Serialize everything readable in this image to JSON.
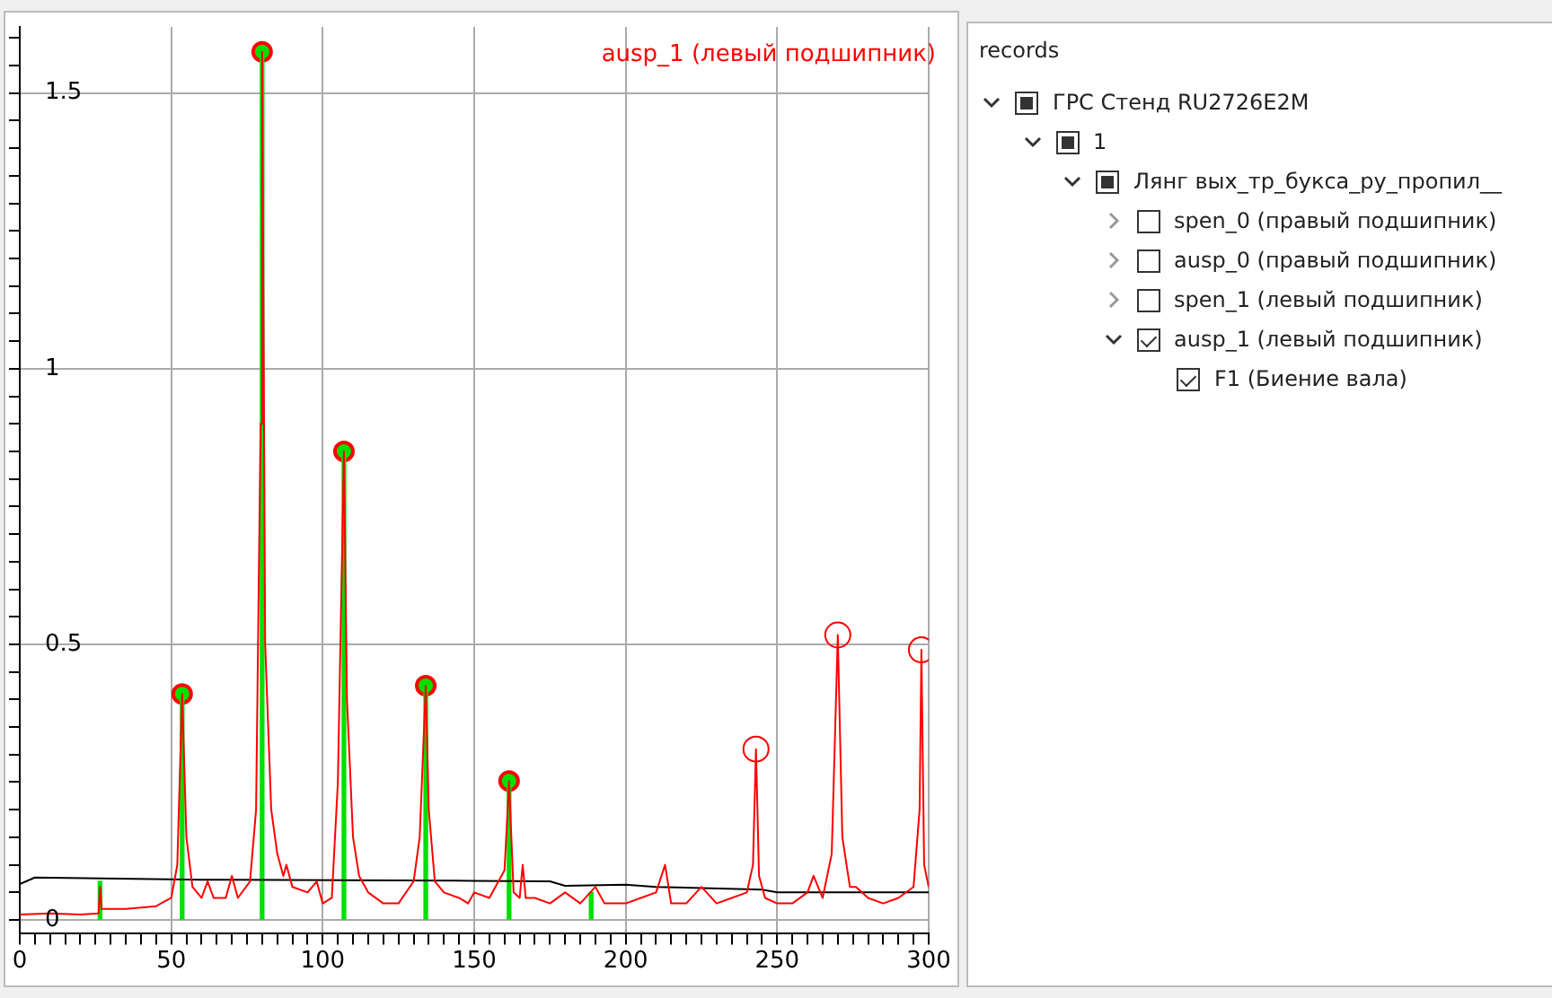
{
  "chart_data": [
    {
      "type": "line",
      "xlim": [
        0,
        300
      ],
      "ylim": [
        -0.025,
        1.62
      ],
      "xticks": [
        0,
        {
          "value": 5,
          "label": null
        },
        {
          "value": 10,
          "label": null
        },
        {
          "value": 15,
          "label": null
        },
        {
          "value": 20,
          "label": null
        },
        {
          "value": 25,
          "label": null
        },
        {
          "value": 30,
          "label": null
        },
        {
          "value": 35,
          "label": null
        },
        {
          "value": 40,
          "label": null
        },
        {
          "value": 45,
          "label": null
        },
        50,
        {
          "value": 55,
          "label": null
        },
        {
          "value": 60,
          "label": null
        },
        {
          "value": 65,
          "label": null
        },
        {
          "value": 70,
          "label": null
        },
        {
          "value": 75,
          "label": null
        },
        {
          "value": 80,
          "label": null
        },
        {
          "value": 85,
          "label": null
        },
        {
          "value": 90,
          "label": null
        },
        {
          "value": 95,
          "label": null
        },
        100,
        {
          "value": 105,
          "label": null
        },
        {
          "value": 110,
          "label": null
        },
        {
          "value": 115,
          "label": null
        },
        {
          "value": 120,
          "label": null
        },
        {
          "value": 125,
          "label": null
        },
        {
          "value": 130,
          "label": null
        },
        {
          "value": 135,
          "label": null
        },
        {
          "value": 140,
          "label": null
        },
        {
          "value": 145,
          "label": null
        },
        150,
        {
          "value": 155,
          "label": null
        },
        {
          "value": 160,
          "label": null
        },
        {
          "value": 165,
          "label": null
        },
        {
          "value": 170,
          "label": null
        },
        {
          "value": 175,
          "label": null
        },
        {
          "value": 180,
          "label": null
        },
        {
          "value": 185,
          "label": null
        },
        {
          "value": 190,
          "label": null
        },
        {
          "value": 195,
          "label": null
        },
        200,
        {
          "value": 205,
          "label": null
        },
        {
          "value": 210,
          "label": null
        },
        {
          "value": 215,
          "label": null
        },
        {
          "value": 220,
          "label": null
        },
        {
          "value": 225,
          "label": null
        },
        {
          "value": 230,
          "label": null
        },
        {
          "value": 235,
          "label": null
        },
        {
          "value": 240,
          "label": null
        },
        {
          "value": 245,
          "label": null
        },
        250,
        {
          "value": 255,
          "label": null
        },
        {
          "value": 260,
          "label": null
        },
        {
          "value": 265,
          "label": null
        },
        {
          "value": 270,
          "label": null
        },
        {
          "value": 275,
          "label": null
        },
        {
          "value": 280,
          "label": null
        },
        {
          "value": 285,
          "label": null
        },
        {
          "value": 290,
          "label": null
        },
        {
          "value": 295,
          "label": null
        },
        300
      ],
      "yticks": [
        0,
        {
          "value": 0.05,
          "label": null
        },
        {
          "value": 0.1,
          "label": null
        },
        {
          "value": 0.15,
          "label": null
        },
        {
          "value": 0.2,
          "label": null
        },
        {
          "value": 0.25,
          "label": null
        },
        {
          "value": 0.3,
          "label": null
        },
        {
          "value": 0.35,
          "label": null
        },
        {
          "value": 0.4,
          "label": null
        },
        {
          "value": 0.45,
          "label": null
        },
        0.5,
        {
          "value": 0.55,
          "label": null
        },
        {
          "value": 0.6,
          "label": null
        },
        {
          "value": 0.65,
          "label": null
        },
        {
          "value": 0.7,
          "label": null
        },
        {
          "value": 0.75,
          "label": null
        },
        {
          "value": 0.8,
          "label": null
        },
        {
          "value": 0.85,
          "label": null
        },
        {
          "value": 0.9,
          "label": null
        },
        {
          "value": 0.95,
          "label": null
        },
        1,
        {
          "value": 1.05,
          "label": null
        },
        {
          "value": 1.1,
          "label": null
        },
        {
          "value": 1.15,
          "label": null
        },
        {
          "value": 1.2,
          "label": null
        },
        {
          "value": 1.25,
          "label": null
        },
        {
          "value": 1.3,
          "label": null
        },
        {
          "value": 1.35,
          "label": null
        },
        {
          "value": 1.4,
          "label": null
        },
        {
          "value": 1.45,
          "label": null
        },
        1.5,
        {
          "value": 1.55,
          "label": null
        },
        {
          "value": 1.6,
          "label": null
        }
      ],
      "grid": true,
      "legend": "top right",
      "marker": "none",
      "series": [
        {
          "type": "bar",
          "color": "#00e000",
          "x": [
            26.5,
            53.6,
            80,
            107,
            134,
            161.5,
            188.6
          ],
          "values": [
            0.07,
            0.41,
            1.575,
            0.85,
            0.425,
            0.252,
            0.05
          ]
        },
        {
          "name": "ausp_1 (левый подшипник)",
          "color": "#ff0000",
          "x": [
            0,
            10,
            20,
            26,
            26.5,
            27,
            35,
            45,
            50,
            52,
            53.6,
            55,
            57,
            60,
            62,
            64,
            68,
            70,
            72,
            76,
            78,
            79.5,
            80,
            81,
            83,
            85,
            87,
            88,
            90,
            95,
            98,
            100,
            103,
            105,
            107,
            108,
            110,
            112,
            115,
            120,
            125,
            130,
            132,
            134,
            135,
            137,
            140,
            145,
            148,
            150,
            155,
            158,
            160,
            161.5,
            163,
            165,
            166,
            167,
            170,
            175,
            180,
            185,
            190,
            193,
            196,
            200,
            205,
            210,
            213,
            215,
            220,
            225,
            230,
            235,
            240,
            242,
            243,
            244,
            246,
            250,
            255,
            260,
            262,
            265,
            268,
            270,
            271.5,
            274,
            276,
            280,
            285,
            290,
            295,
            297,
            297.6,
            298.5,
            300
          ],
          "values": [
            0.01,
            0.012,
            0.01,
            0.012,
            0.06,
            0.02,
            0.02,
            0.025,
            0.04,
            0.1,
            0.41,
            0.15,
            0.06,
            0.04,
            0.07,
            0.04,
            0.04,
            0.08,
            0.04,
            0.07,
            0.2,
            0.9,
            1.575,
            0.5,
            0.2,
            0.12,
            0.08,
            0.1,
            0.06,
            0.05,
            0.07,
            0.03,
            0.04,
            0.25,
            0.85,
            0.4,
            0.15,
            0.08,
            0.05,
            0.03,
            0.03,
            0.07,
            0.15,
            0.425,
            0.2,
            0.07,
            0.05,
            0.04,
            0.03,
            0.05,
            0.04,
            0.07,
            0.09,
            0.252,
            0.05,
            0.04,
            0.1,
            0.04,
            0.04,
            0.03,
            0.05,
            0.03,
            0.06,
            0.03,
            0.03,
            0.03,
            0.04,
            0.05,
            0.1,
            0.03,
            0.03,
            0.06,
            0.03,
            0.04,
            0.05,
            0.1,
            0.31,
            0.08,
            0.04,
            0.03,
            0.03,
            0.05,
            0.08,
            0.04,
            0.12,
            0.517,
            0.15,
            0.06,
            0.06,
            0.04,
            0.03,
            0.04,
            0.06,
            0.2,
            0.49,
            0.1,
            0.06
          ]
        },
        {
          "type": "line",
          "color": "#000000",
          "x": [
            0,
            5,
            60,
            150,
            175,
            180,
            200,
            210,
            245,
            250,
            300
          ],
          "values": [
            0.065,
            0.077,
            0.073,
            0.071,
            0.07,
            0.062,
            0.064,
            0.06,
            0.055,
            0.05,
            0.05
          ]
        },
        {
          "type": "scatter",
          "color": "#00e000",
          "marker": "circle",
          "x": [
            53.6,
            80,
            107,
            134,
            161.5
          ],
          "values": [
            0.41,
            1.575,
            0.85,
            0.425,
            0.252
          ]
        },
        {
          "type": "scatter",
          "color": "#ff0000",
          "marker": "circle",
          "x": [
            243,
            270,
            297.6
          ],
          "values": [
            0.31,
            0.517,
            0.49
          ]
        }
      ]
    },
    {
      "type": "other",
      "title": "records",
      "annotations": [
        "ГРС Стенд RU2726E2M",
        "1",
        "Лянг вых_тр_букса_ру_пропил__",
        "spen_0 (правый подшипник)",
        "ausp_0 (правый подшипник)",
        "spen_1 (левый подшипник)",
        "ausp_1 (левый подшипник)",
        "F1 (Биение вала)"
      ]
    }
  ]
}
